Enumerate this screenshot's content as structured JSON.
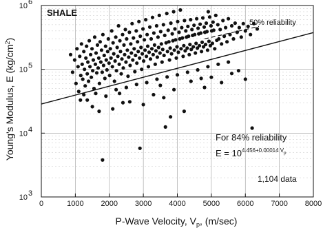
{
  "chart_data": {
    "type": "scatter",
    "title": "",
    "panel_label": "SHALE",
    "xlabel_main": "P-Wave Velocity, V",
    "xlabel_sub": "p",
    "xlabel_unit": ", (m/sec)",
    "ylabel_main": "Young's Modulus, E (kg/cm",
    "ylabel_sup": "2",
    "ylabel_end": ")",
    "xlim": [
      0,
      8000
    ],
    "ylim": [
      1000,
      1000000
    ],
    "yscale": "log",
    "x_ticks": [
      0,
      1000,
      2000,
      3000,
      4000,
      5000,
      6000,
      7000,
      8000
    ],
    "x_tick_labels": [
      "0",
      "1000",
      "2000",
      "3000",
      "4000",
      "5000",
      "6000",
      "7000",
      "8000"
    ],
    "y_ticks": [
      1000,
      10000,
      100000,
      1000000
    ],
    "y_tick_labels_base": [
      "10",
      "10",
      "10",
      "10"
    ],
    "y_tick_labels_exp": [
      "3",
      "4",
      "5",
      "6"
    ],
    "grid": true,
    "points_count_text": "1,104 data",
    "reliability_50_text": "50% reliability",
    "reliability_84_text": "For 84% reliability",
    "equation_prefix": "E = 10",
    "equation_exponent": "4.456+0.00014 V",
    "equation_exponent_sub": "p",
    "regression_84": {
      "intercept_log10": 4.456,
      "slope": 0.00014,
      "x": [
        0,
        8000
      ]
    },
    "regression_50": {
      "x": [
        4800,
        6400
      ],
      "y": [
        300000,
        470000
      ]
    },
    "series": [
      {
        "points": [
          [
            860,
            170000
          ],
          [
            920,
            90000
          ],
          [
            980,
            140000
          ],
          [
            1020,
            60000
          ],
          [
            1050,
            210000
          ],
          [
            1080,
            110000
          ],
          [
            1100,
            45000
          ],
          [
            1130,
            160000
          ],
          [
            1160,
            80000
          ],
          [
            1180,
            250000
          ],
          [
            1200,
            120000
          ],
          [
            1220,
            70000
          ],
          [
            1250,
            190000
          ],
          [
            1270,
            100000
          ],
          [
            1290,
            55000
          ],
          [
            1310,
            150000
          ],
          [
            1330,
            230000
          ],
          [
            1350,
            85000
          ],
          [
            1370,
            130000
          ],
          [
            1390,
            65000
          ],
          [
            1410,
            280000
          ],
          [
            1430,
            110000
          ],
          [
            1450,
            170000
          ],
          [
            1470,
            75000
          ],
          [
            1490,
            210000
          ],
          [
            1510,
            95000
          ],
          [
            1530,
            140000
          ],
          [
            1550,
            50000
          ],
          [
            1570,
            320000
          ],
          [
            1590,
            120000
          ],
          [
            1610,
            180000
          ],
          [
            1630,
            88000
          ],
          [
            1650,
            240000
          ],
          [
            1670,
            105000
          ],
          [
            1690,
            150000
          ],
          [
            1710,
            60000
          ],
          [
            1730,
            270000
          ],
          [
            1750,
            130000
          ],
          [
            1770,
            200000
          ],
          [
            1790,
            90000
          ],
          [
            1810,
            350000
          ],
          [
            1830,
            115000
          ],
          [
            1850,
            165000
          ],
          [
            1870,
            72000
          ],
          [
            1890,
            230000
          ],
          [
            1910,
            140000
          ],
          [
            1930,
            98000
          ],
          [
            1950,
            190000
          ],
          [
            1970,
            300000
          ],
          [
            1990,
            125000
          ],
          [
            2010,
            80000
          ],
          [
            2030,
            210000
          ],
          [
            2050,
            150000
          ],
          [
            2070,
            400000
          ],
          [
            2090,
            110000
          ],
          [
            2110,
            260000
          ],
          [
            2130,
            175000
          ],
          [
            2150,
            65000
          ],
          [
            2170,
            135000
          ],
          [
            2190,
            320000
          ],
          [
            2210,
            95000
          ],
          [
            2230,
            220000
          ],
          [
            2250,
            160000
          ],
          [
            2270,
            480000
          ],
          [
            2290,
            120000
          ],
          [
            2310,
            280000
          ],
          [
            2330,
            190000
          ],
          [
            2350,
            85000
          ],
          [
            2370,
            145000
          ],
          [
            2390,
            350000
          ],
          [
            2410,
            105000
          ],
          [
            2430,
            240000
          ],
          [
            2450,
            170000
          ],
          [
            2470,
            420000
          ],
          [
            2490,
            130000
          ],
          [
            2510,
            300000
          ],
          [
            2530,
            200000
          ],
          [
            2550,
            78000
          ],
          [
            2570,
            155000
          ],
          [
            2590,
            380000
          ],
          [
            2610,
            115000
          ],
          [
            2630,
            250000
          ],
          [
            2650,
            180000
          ],
          [
            2670,
            520000
          ],
          [
            2690,
            140000
          ],
          [
            2710,
            310000
          ],
          [
            2730,
            210000
          ],
          [
            2750,
            92000
          ],
          [
            2770,
            165000
          ],
          [
            2790,
            400000
          ],
          [
            2810,
            125000
          ],
          [
            2830,
            270000
          ],
          [
            2850,
            190000
          ],
          [
            2870,
            560000
          ],
          [
            2890,
            150000
          ],
          [
            2910,
            330000
          ],
          [
            2930,
            220000
          ],
          [
            2950,
            100000
          ],
          [
            2970,
            175000
          ],
          [
            2990,
            430000
          ],
          [
            3010,
            135000
          ],
          [
            3030,
            290000
          ],
          [
            3050,
            200000
          ],
          [
            3070,
            600000
          ],
          [
            3090,
            160000
          ],
          [
            3110,
            350000
          ],
          [
            3130,
            230000
          ],
          [
            3150,
            110000
          ],
          [
            3170,
            185000
          ],
          [
            3190,
            460000
          ],
          [
            3210,
            145000
          ],
          [
            3230,
            300000
          ],
          [
            3250,
            210000
          ],
          [
            3270,
            650000
          ],
          [
            3290,
            170000
          ],
          [
            3310,
            370000
          ],
          [
            3330,
            240000
          ],
          [
            3350,
            120000
          ],
          [
            3370,
            195000
          ],
          [
            3390,
            480000
          ],
          [
            3410,
            155000
          ],
          [
            3430,
            320000
          ],
          [
            3450,
            220000
          ],
          [
            3470,
            700000
          ],
          [
            3490,
            180000
          ],
          [
            3510,
            390000
          ],
          [
            3530,
            250000
          ],
          [
            3550,
            130000
          ],
          [
            3570,
            205000
          ],
          [
            3590,
            500000
          ],
          [
            3610,
            165000
          ],
          [
            3630,
            340000
          ],
          [
            3650,
            12500
          ],
          [
            3670,
            260000
          ],
          [
            3690,
            750000
          ],
          [
            3710,
            190000
          ],
          [
            3730,
            410000
          ],
          [
            3750,
            270000
          ],
          [
            3770,
            140000
          ],
          [
            3790,
            215000
          ],
          [
            3810,
            530000
          ],
          [
            3830,
            175000
          ],
          [
            3850,
            360000
          ],
          [
            3870,
            280000
          ],
          [
            3890,
            800000
          ],
          [
            3910,
            200000
          ],
          [
            3930,
            430000
          ],
          [
            3950,
            290000
          ],
          [
            3970,
            150000
          ],
          [
            3990,
            225000
          ],
          [
            4010,
            560000
          ],
          [
            4030,
            185000
          ],
          [
            4050,
            380000
          ],
          [
            4070,
            300000
          ],
          [
            4090,
            850000
          ],
          [
            4110,
            210000
          ],
          [
            4130,
            450000
          ],
          [
            4150,
            310000
          ],
          [
            4170,
            160000
          ],
          [
            4190,
            235000
          ],
          [
            4210,
            580000
          ],
          [
            4230,
            195000
          ],
          [
            4250,
            400000
          ],
          [
            4270,
            320000
          ],
          [
            4290,
            215000
          ],
          [
            4310,
            470000
          ],
          [
            4330,
            330000
          ],
          [
            4350,
            170000
          ],
          [
            4370,
            245000
          ],
          [
            4390,
            600000
          ],
          [
            4410,
            205000
          ],
          [
            4430,
            420000
          ],
          [
            4450,
            340000
          ],
          [
            4470,
            225000
          ],
          [
            4490,
            490000
          ],
          [
            4510,
            350000
          ],
          [
            4530,
            180000
          ],
          [
            4550,
            255000
          ],
          [
            4570,
            620000
          ],
          [
            4590,
            215000
          ],
          [
            4610,
            440000
          ],
          [
            4630,
            360000
          ],
          [
            4650,
            235000
          ],
          [
            4670,
            510000
          ],
          [
            4690,
            370000
          ],
          [
            4710,
            190000
          ],
          [
            4730,
            265000
          ],
          [
            4750,
            640000
          ],
          [
            4770,
            225000
          ],
          [
            4790,
            460000
          ],
          [
            4810,
            380000
          ],
          [
            4830,
            245000
          ],
          [
            4850,
            530000
          ],
          [
            4870,
            390000
          ],
          [
            4890,
            200000
          ],
          [
            4910,
            800000
          ],
          [
            4930,
            275000
          ],
          [
            4950,
            660000
          ],
          [
            4970,
            235000
          ],
          [
            4990,
            480000
          ],
          [
            5010,
            400000
          ],
          [
            5030,
            255000
          ],
          [
            5050,
            550000
          ],
          [
            5070,
            410000
          ],
          [
            5100,
            210000
          ],
          [
            5130,
            700000
          ],
          [
            5160,
            285000
          ],
          [
            5190,
            500000
          ],
          [
            5220,
            300000
          ],
          [
            5260,
            420000
          ],
          [
            5300,
            250000
          ],
          [
            5340,
            580000
          ],
          [
            5380,
            330000
          ],
          [
            5420,
            450000
          ],
          [
            5460,
            270000
          ],
          [
            5500,
            620000
          ],
          [
            5550,
            350000
          ],
          [
            5600,
            480000
          ],
          [
            5650,
            300000
          ],
          [
            5700,
            530000
          ],
          [
            5760,
            380000
          ],
          [
            5820,
            450000
          ],
          [
            5880,
            320000
          ],
          [
            5940,
            520000
          ],
          [
            6000,
            400000
          ],
          [
            6080,
            470000
          ],
          [
            6150,
            350000
          ],
          [
            6250,
            520000
          ],
          [
            6350,
            430000
          ],
          [
            6200,
            12000
          ],
          [
            1350,
            33000
          ],
          [
            1600,
            42000
          ],
          [
            1900,
            38000
          ],
          [
            2200,
            48000
          ],
          [
            2500,
            52000
          ],
          [
            2800,
            58000
          ],
          [
            3100,
            62000
          ],
          [
            3400,
            70000
          ],
          [
            3700,
            76000
          ],
          [
            4000,
            82000
          ],
          [
            4300,
            90000
          ],
          [
            4600,
            98000
          ],
          [
            4900,
            110000
          ],
          [
            5200,
            120000
          ],
          [
            5500,
            130000
          ],
          [
            5800,
            95000
          ],
          [
            3900,
            48000
          ],
          [
            4400,
            65000
          ],
          [
            5000,
            75000
          ],
          [
            3300,
            40000
          ],
          [
            1800,
            3800
          ],
          [
            2900,
            5800
          ],
          [
            1500,
            26000
          ],
          [
            2600,
            31000
          ],
          [
            3600,
            36000
          ],
          [
            4800,
            52000
          ],
          [
            5300,
            62000
          ],
          [
            6000,
            70000
          ],
          [
            1250,
            40000
          ],
          [
            2100,
            24000
          ],
          [
            3800,
            18000
          ],
          [
            4200,
            22000
          ],
          [
            3000,
            28000
          ],
          [
            2400,
            30000
          ],
          [
            1700,
            22000
          ],
          [
            1150,
            33000
          ],
          [
            5600,
            86000
          ],
          [
            4700,
            72000
          ],
          [
            3500,
            56000
          ],
          [
            2300,
            42000
          ]
        ]
      }
    ]
  }
}
